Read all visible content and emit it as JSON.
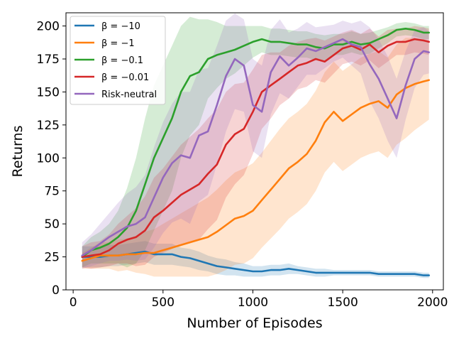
{
  "chart_data": {
    "type": "line",
    "xlabel": "Number of Episodes",
    "ylabel": "Returns",
    "xlim": [
      -40,
      2060
    ],
    "ylim": [
      0,
      210
    ],
    "xticks": [
      0,
      500,
      1000,
      1500,
      2000
    ],
    "yticks": [
      0,
      25,
      50,
      75,
      100,
      125,
      150,
      175,
      200
    ],
    "xtick_labels": [
      "0",
      "500",
      "1000",
      "1500",
      "2000"
    ],
    "ytick_labels": [
      "0",
      "25",
      "50",
      "75",
      "100",
      "125",
      "150",
      "175",
      "200"
    ],
    "grid": false,
    "legend_position": "top-left",
    "x": [
      50,
      100,
      150,
      200,
      250,
      300,
      350,
      400,
      450,
      500,
      550,
      600,
      650,
      700,
      750,
      800,
      850,
      900,
      950,
      1000,
      1050,
      1100,
      1150,
      1200,
      1250,
      1300,
      1350,
      1400,
      1450,
      1500,
      1550,
      1600,
      1650,
      1700,
      1750,
      1800,
      1850,
      1900,
      1950,
      1980
    ],
    "series": [
      {
        "name": "β = −10",
        "color": "#1f77b4",
        "values": [
          25,
          25,
          25,
          26,
          26,
          27,
          28,
          29,
          27,
          27,
          27,
          25,
          24,
          22,
          20,
          18,
          17,
          16,
          15,
          14,
          14,
          15,
          15,
          16,
          15,
          14,
          13,
          13,
          13,
          13,
          13,
          13,
          13,
          12,
          12,
          12,
          12,
          12,
          11,
          11
        ],
        "band": [
          8,
          8,
          8,
          8,
          8,
          8,
          8,
          8,
          8,
          8,
          8,
          7,
          7,
          7,
          6,
          6,
          6,
          5,
          5,
          4,
          4,
          4,
          4,
          4,
          3,
          3,
          3,
          3,
          2,
          2,
          2,
          2,
          2,
          2,
          2,
          2,
          2,
          2,
          2,
          2
        ]
      },
      {
        "name": "β = −1",
        "color": "#ff7f0e",
        "values": [
          22,
          24,
          26,
          26,
          26,
          27,
          27,
          28,
          28,
          30,
          32,
          34,
          36,
          38,
          40,
          44,
          49,
          54,
          56,
          60,
          68,
          76,
          84,
          92,
          97,
          103,
          113,
          127,
          135,
          128,
          133,
          138,
          141,
          143,
          138,
          148,
          153,
          156,
          158,
          159
        ],
        "band": [
          6,
          8,
          10,
          10,
          12,
          12,
          14,
          16,
          18,
          20,
          22,
          24,
          26,
          28,
          30,
          32,
          34,
          35,
          36,
          36,
          36,
          37,
          38,
          38,
          38,
          38,
          38,
          38,
          38,
          38,
          38,
          38,
          38,
          38,
          38,
          38,
          38,
          35,
          32,
          30
        ]
      },
      {
        "name": "β = −0.1",
        "color": "#2ca02c",
        "values": [
          25,
          30,
          32,
          35,
          40,
          47,
          60,
          80,
          100,
          115,
          130,
          150,
          162,
          165,
          175,
          178,
          180,
          182,
          185,
          188,
          190,
          188,
          188,
          187,
          186,
          186,
          184,
          183,
          186,
          186,
          188,
          186,
          187,
          190,
          193,
          197,
          198,
          197,
          195,
          195
        ],
        "band": [
          8,
          10,
          12,
          15,
          20,
          30,
          40,
          50,
          55,
          55,
          55,
          50,
          45,
          40,
          30,
          25,
          20,
          18,
          15,
          12,
          10,
          10,
          10,
          10,
          10,
          10,
          10,
          10,
          8,
          8,
          8,
          8,
          8,
          7,
          6,
          5,
          5,
          5,
          5,
          5
        ]
      },
      {
        "name": "β = −0.01",
        "color": "#d62728",
        "values": [
          25,
          26,
          27,
          30,
          35,
          38,
          40,
          45,
          55,
          60,
          66,
          72,
          76,
          80,
          88,
          95,
          110,
          118,
          122,
          135,
          150,
          155,
          160,
          165,
          170,
          172,
          175,
          173,
          178,
          183,
          185,
          182,
          186,
          180,
          185,
          188,
          188,
          190,
          189,
          188
        ],
        "band": [
          8,
          10,
          10,
          12,
          15,
          18,
          22,
          26,
          30,
          32,
          35,
          38,
          40,
          42,
          42,
          42,
          40,
          38,
          35,
          32,
          28,
          25,
          20,
          20,
          18,
          18,
          16,
          16,
          14,
          12,
          12,
          12,
          12,
          12,
          12,
          10,
          10,
          10,
          10,
          10
        ]
      },
      {
        "name": "Risk-neutral",
        "color": "#9467bd",
        "values": [
          26,
          30,
          35,
          40,
          44,
          48,
          50,
          55,
          70,
          85,
          96,
          102,
          100,
          117,
          120,
          140,
          162,
          175,
          170,
          140,
          135,
          165,
          177,
          170,
          176,
          183,
          181,
          184,
          187,
          190,
          186,
          184,
          171,
          160,
          145,
          130,
          155,
          175,
          181,
          180
        ],
        "band": [
          10,
          12,
          15,
          18,
          22,
          25,
          28,
          32,
          38,
          42,
          45,
          48,
          50,
          50,
          48,
          45,
          42,
          38,
          35,
          35,
          35,
          32,
          28,
          25,
          22,
          20,
          18,
          16,
          14,
          14,
          16,
          20,
          28,
          30,
          32,
          30,
          26,
          22,
          18,
          16
        ]
      }
    ]
  }
}
